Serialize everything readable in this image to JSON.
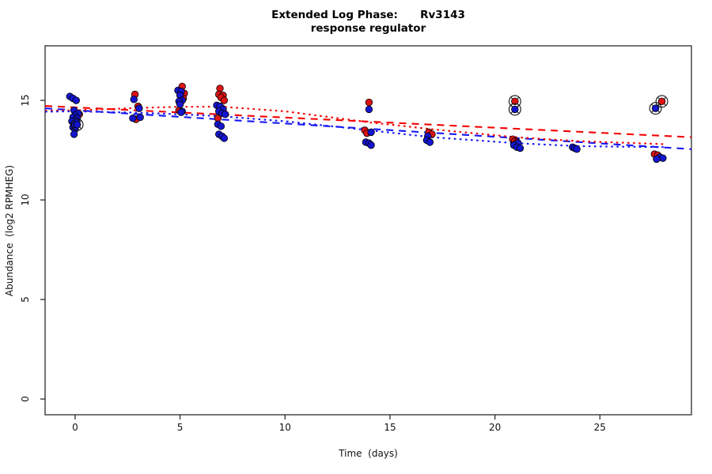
{
  "title": {
    "line1": "Extended Log Phase:      Rv3143",
    "line2": "response regulator"
  },
  "chart_data": {
    "type": "scatter",
    "title": "Extended Log Phase:      Rv3143",
    "subtitle": "response regulator",
    "xlabel": "Time  (days)",
    "ylabel": "Abundance  (log2 RPMHEG)",
    "xlim": [
      -1.43,
      29.36
    ],
    "ylim": [
      -0.79,
      17.74
    ],
    "x_ticks": [
      0,
      5,
      10,
      15,
      20,
      25
    ],
    "y_ticks": [
      0,
      5,
      10,
      15
    ],
    "grid": false,
    "legend": "none",
    "point_colors": {
      "red": "#DE1414",
      "blue": "#1515D0"
    },
    "line_colors": {
      "red": "#F50000",
      "blue": "#1414F5"
    },
    "series": [
      {
        "name": "red-points",
        "color": "#DE1414",
        "points": [
          [
            0.2,
            14.3
          ],
          [
            2.85,
            15.3
          ],
          [
            3.0,
            14.7
          ],
          [
            2.9,
            14.05
          ],
          [
            5.1,
            15.7
          ],
          [
            5.2,
            15.35
          ],
          [
            5.15,
            15.1
          ],
          [
            4.95,
            14.5
          ],
          [
            6.9,
            15.6
          ],
          [
            6.85,
            15.3
          ],
          [
            7.05,
            15.25
          ],
          [
            6.95,
            15.15
          ],
          [
            7.1,
            15.0
          ],
          [
            7.0,
            14.6
          ],
          [
            6.8,
            14.1
          ],
          [
            14.0,
            14.9
          ],
          [
            13.8,
            13.5
          ],
          [
            13.9,
            13.35
          ],
          [
            16.85,
            13.4
          ],
          [
            17.0,
            13.3
          ],
          [
            20.85,
            13.05
          ],
          [
            20.95,
            12.95
          ],
          [
            21.05,
            12.9
          ],
          [
            27.6,
            12.3
          ],
          [
            27.75,
            12.25
          ]
        ]
      },
      {
        "name": "blue-points",
        "color": "#1515D0",
        "points": [
          [
            -0.25,
            15.2
          ],
          [
            -0.1,
            15.1
          ],
          [
            0.05,
            15.0
          ],
          [
            -0.05,
            14.5
          ],
          [
            0.15,
            14.35
          ],
          [
            0.0,
            14.25
          ],
          [
            -0.1,
            14.15
          ],
          [
            0.1,
            14.1
          ],
          [
            0.0,
            14.0
          ],
          [
            -0.15,
            13.95
          ],
          [
            0.05,
            13.9
          ],
          [
            -0.05,
            13.8
          ],
          [
            -0.1,
            13.65
          ],
          [
            0.0,
            13.55
          ],
          [
            -0.05,
            13.3
          ],
          [
            2.8,
            15.05
          ],
          [
            3.05,
            14.6
          ],
          [
            2.75,
            14.1
          ],
          [
            3.1,
            14.15
          ],
          [
            4.9,
            15.5
          ],
          [
            5.05,
            15.45
          ],
          [
            5.0,
            15.25
          ],
          [
            5.1,
            15.0
          ],
          [
            4.95,
            14.95
          ],
          [
            5.0,
            14.8
          ],
          [
            5.1,
            14.45
          ],
          [
            5.05,
            14.4
          ],
          [
            6.75,
            14.75
          ],
          [
            6.9,
            14.7
          ],
          [
            7.05,
            14.55
          ],
          [
            6.85,
            14.45
          ],
          [
            7.0,
            14.35
          ],
          [
            7.15,
            14.3
          ],
          [
            6.8,
            13.8
          ],
          [
            6.95,
            13.7
          ],
          [
            6.85,
            13.3
          ],
          [
            7.0,
            13.2
          ],
          [
            7.1,
            13.1
          ],
          [
            14.0,
            14.55
          ],
          [
            14.1,
            13.4
          ],
          [
            13.85,
            12.9
          ],
          [
            14.0,
            12.85
          ],
          [
            14.1,
            12.75
          ],
          [
            16.8,
            13.2
          ],
          [
            16.75,
            13.0
          ],
          [
            16.9,
            12.9
          ],
          [
            21.1,
            12.85
          ],
          [
            20.9,
            12.75
          ],
          [
            21.05,
            12.65
          ],
          [
            21.2,
            12.6
          ],
          [
            23.7,
            12.65
          ],
          [
            23.8,
            12.6
          ],
          [
            23.9,
            12.55
          ],
          [
            27.85,
            12.15
          ],
          [
            28.0,
            12.1
          ],
          [
            27.7,
            12.05
          ]
        ]
      }
    ],
    "highlighted_points": [
      {
        "x": 0.1,
        "y": 13.78,
        "color": "blue"
      },
      {
        "x": 20.95,
        "y": 14.95,
        "color": "red"
      },
      {
        "x": 20.95,
        "y": 14.55,
        "color": "blue"
      },
      {
        "x": 27.95,
        "y": 14.95,
        "color": "red"
      },
      {
        "x": 27.65,
        "y": 14.6,
        "color": "blue"
      }
    ],
    "trend_lines": [
      {
        "name": "red-linear-fit",
        "color": "#F50000",
        "style": "longdash",
        "points": [
          [
            -1.43,
            14.72
          ],
          [
            29.36,
            13.15
          ]
        ]
      },
      {
        "name": "blue-linear-fit",
        "color": "#1414F5",
        "style": "longdash",
        "points": [
          [
            -1.43,
            14.6
          ],
          [
            29.36,
            12.55
          ]
        ]
      },
      {
        "name": "red-smooth-fit",
        "color": "#F50000",
        "style": "dotted",
        "points": [
          [
            -1.43,
            14.48
          ],
          [
            0,
            14.5
          ],
          [
            3,
            14.62
          ],
          [
            5,
            14.68
          ],
          [
            7,
            14.68
          ],
          [
            10,
            14.45
          ],
          [
            14,
            13.9
          ],
          [
            17,
            13.55
          ],
          [
            21,
            13.15
          ],
          [
            24,
            12.95
          ],
          [
            28.1,
            12.8
          ]
        ]
      },
      {
        "name": "blue-smooth-fit",
        "color": "#1414F5",
        "style": "dotted",
        "points": [
          [
            -1.43,
            14.43
          ],
          [
            0,
            14.45
          ],
          [
            3,
            14.38
          ],
          [
            5,
            14.3
          ],
          [
            7,
            14.2
          ],
          [
            10,
            13.95
          ],
          [
            14,
            13.5
          ],
          [
            17,
            13.15
          ],
          [
            21,
            12.85
          ],
          [
            24,
            12.7
          ],
          [
            28.1,
            12.65
          ]
        ]
      }
    ]
  }
}
